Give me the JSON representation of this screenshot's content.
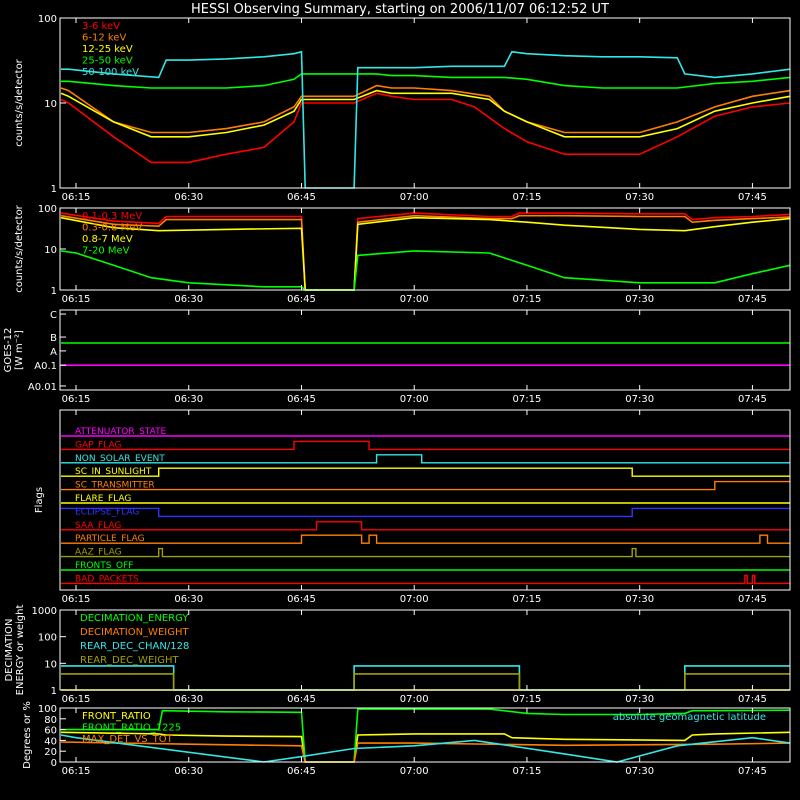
{
  "title": "HESSI Observing Summary, starting on 2006/11/07 06:12:52 UT",
  "time_ticks": [
    "06:15",
    "06:30",
    "06:45",
    "07:00",
    "07:15",
    "07:30",
    "07:45"
  ],
  "time_tick_minutes": [
    15,
    30,
    45,
    60,
    75,
    90,
    105
  ],
  "colors": {
    "axis": "#ffffff",
    "red": "#ff0000",
    "orange": "#ff8000",
    "yellow": "#ffff00",
    "green": "#00ff00",
    "cyan": "#33e6e6",
    "magenta": "#ff00ff",
    "blue": "#3333ff",
    "olive": "#a0a000",
    "salmon": "#ff6040"
  },
  "chart_data": [
    {
      "id": "lo",
      "type": "line",
      "ylabel": "counts/s/detector",
      "yscale": "log",
      "ylim": [
        1,
        100
      ],
      "ytick_labels": [
        "1",
        "10",
        "100"
      ],
      "legend": [
        "3-6 keV",
        "6-12 keV",
        "12-25 keV",
        "25-50 keV",
        "50-100 keV"
      ],
      "series": [
        {
          "name": "3-6 keV",
          "color": "red",
          "x": [
            13,
            14,
            20,
            25,
            30,
            35,
            40,
            44,
            45,
            52,
            55,
            57,
            60,
            65,
            68,
            72,
            75,
            80,
            85,
            90,
            95,
            100,
            105,
            110
          ],
          "y": [
            11,
            10,
            4,
            2,
            2,
            2.5,
            3,
            6,
            10,
            10,
            13,
            12,
            11,
            11,
            9,
            5,
            3.5,
            2.5,
            2.5,
            2.5,
            4,
            7,
            9,
            10
          ]
        },
        {
          "name": "6-12 keV",
          "color": "orange",
          "x": [
            13,
            14,
            20,
            25,
            30,
            35,
            40,
            44,
            45,
            52,
            55,
            57,
            60,
            65,
            70,
            72,
            75,
            80,
            85,
            90,
            95,
            100,
            105,
            110
          ],
          "y": [
            15,
            14,
            6,
            4.5,
            4.5,
            5,
            6,
            9,
            12,
            12,
            16,
            15,
            15,
            14,
            12,
            8,
            6,
            4.5,
            4.5,
            4.5,
            6,
            9,
            12,
            14
          ]
        },
        {
          "name": "12-25 keV",
          "color": "yellow",
          "x": [
            13,
            14,
            20,
            25,
            30,
            35,
            40,
            44,
            45,
            52,
            55,
            57,
            60,
            65,
            70,
            72,
            75,
            80,
            85,
            90,
            95,
            100,
            105,
            110
          ],
          "y": [
            13,
            12,
            6,
            4,
            4,
            4.5,
            5.5,
            8,
            11,
            11,
            14,
            13,
            13,
            13,
            11,
            8,
            6,
            4,
            4,
            4,
            5,
            8,
            10,
            12
          ]
        },
        {
          "name": "25-50 keV",
          "color": "green",
          "x": [
            13,
            14,
            20,
            25,
            30,
            35,
            40,
            44,
            45,
            52,
            55,
            57,
            60,
            65,
            72,
            75,
            80,
            85,
            90,
            95,
            100,
            105,
            110
          ],
          "y": [
            18,
            18,
            16,
            15,
            15,
            15,
            16,
            19,
            22,
            22,
            22,
            21,
            21,
            20,
            20,
            19,
            16,
            15,
            15,
            15,
            17,
            18,
            20
          ]
        },
        {
          "name": "50-100 keV",
          "color": "cyan",
          "x": [
            13,
            14,
            20,
            26,
            27,
            30,
            35,
            40,
            44,
            45,
            45.5,
            52,
            52.5,
            57,
            60,
            65,
            72,
            73,
            75,
            80,
            85,
            90,
            95,
            96,
            100,
            105,
            110
          ],
          "y": [
            25,
            25,
            22,
            20,
            32,
            32,
            33,
            35,
            38,
            40,
            1,
            1,
            26,
            26,
            26,
            27,
            27,
            40,
            38,
            36,
            35,
            35,
            34,
            22,
            20,
            22,
            25
          ]
        }
      ]
    },
    {
      "id": "hi",
      "type": "line",
      "ylabel": "counts/s/detector",
      "yscale": "log",
      "ylim": [
        1,
        100
      ],
      "ytick_labels": [
        "1",
        "10",
        "100"
      ],
      "legend": [
        "0.1-0.3 MeV",
        "0.3-0.8 MeV",
        "0.8-7 MeV",
        "7-20 MeV"
      ],
      "series": [
        {
          "name": "0.1-0.3 MeV",
          "color": "red",
          "x": [
            13,
            20,
            26,
            27,
            35,
            45,
            45.5,
            52,
            52.5,
            60,
            70,
            73,
            74,
            80,
            90,
            96,
            97,
            100,
            105,
            110
          ],
          "y": [
            75,
            48,
            42,
            62,
            62,
            62,
            1,
            1,
            55,
            75,
            62,
            62,
            75,
            75,
            72,
            72,
            52,
            58,
            62,
            70
          ]
        },
        {
          "name": "0.3-0.8 MeV",
          "color": "orange",
          "x": [
            13,
            20,
            26,
            27,
            35,
            45,
            45.5,
            52,
            52.5,
            60,
            70,
            73,
            74,
            80,
            90,
            96,
            97,
            100,
            105,
            110
          ],
          "y": [
            65,
            40,
            36,
            52,
            52,
            52,
            1,
            1,
            45,
            65,
            55,
            55,
            65,
            65,
            62,
            62,
            45,
            50,
            55,
            60
          ]
        },
        {
          "name": "0.8-7 MeV",
          "color": "yellow",
          "x": [
            13,
            20,
            26,
            35,
            45,
            45.5,
            52,
            52.5,
            60,
            70,
            75,
            80,
            90,
            96,
            100,
            105,
            110
          ],
          "y": [
            58,
            33,
            28,
            30,
            32,
            1,
            1,
            40,
            58,
            52,
            45,
            38,
            30,
            28,
            35,
            45,
            55
          ]
        },
        {
          "name": "7-20 MeV",
          "color": "green",
          "x": [
            13,
            15,
            20,
            25,
            30,
            40,
            45,
            45.5,
            52,
            52.5,
            60,
            70,
            75,
            80,
            90,
            100,
            105,
            110
          ],
          "y": [
            9,
            8,
            4,
            2,
            1.5,
            1.2,
            1.2,
            1,
            1,
            7,
            9,
            8,
            4,
            2,
            1.5,
            1.5,
            2.5,
            4
          ]
        }
      ]
    },
    {
      "id": "goes",
      "type": "line",
      "ylabel": "GOES-12 [W m^-2]",
      "yscale": "log",
      "ytick_labels": [
        "C",
        "B",
        "A",
        "A0.1",
        "A0.01"
      ],
      "series": [
        {
          "name": "",
          "color": "green",
          "x": [
            13,
            110
          ],
          "y": [
            1.1,
            1.1
          ]
        },
        {
          "name": "",
          "color": "magenta",
          "x": [
            13,
            110
          ],
          "y": [
            0.12,
            0.12
          ]
        }
      ]
    },
    {
      "id": "flags",
      "type": "line",
      "ylabel": "Flags",
      "series": [
        {
          "name": "ATTENUATOR_STATE",
          "color": "magenta",
          "x": [
            13,
            110
          ],
          "y": [
            0,
            0
          ]
        },
        {
          "name": "GAP_FLAG",
          "color": "red",
          "x": [
            13,
            44,
            44,
            54,
            54,
            110
          ],
          "y": [
            0,
            0,
            1,
            1,
            0,
            0
          ]
        },
        {
          "name": "NON_SOLAR_EVENT",
          "color": "cyan",
          "x": [
            13,
            55,
            55,
            61,
            61,
            110
          ],
          "y": [
            0,
            0,
            1,
            1,
            0,
            0
          ]
        },
        {
          "name": "SC_IN_SUNLIGHT",
          "color": "yellow",
          "x": [
            13,
            26,
            26,
            89,
            89,
            110
          ],
          "y": [
            0,
            0,
            1,
            1,
            0,
            0
          ]
        },
        {
          "name": "SC_TRANSMITTER",
          "color": "orange",
          "x": [
            13,
            100,
            100,
            110
          ],
          "y": [
            0,
            0,
            1,
            1
          ]
        },
        {
          "name": "FLARE_FLAG",
          "color": "yellow",
          "x": [
            13,
            110
          ],
          "y": [
            0,
            0
          ]
        },
        {
          "name": "ECLIPSE_FLAG",
          "color": "blue",
          "x": [
            13,
            26,
            26,
            89,
            89,
            110
          ],
          "y": [
            1,
            1,
            0,
            0,
            1,
            1
          ]
        },
        {
          "name": "SAA_FLAG",
          "color": "red",
          "x": [
            13,
            47,
            47,
            53,
            53,
            110
          ],
          "y": [
            0,
            0,
            1,
            1,
            0,
            0
          ]
        },
        {
          "name": "PARTICLE_FLAG",
          "color": "orange",
          "x": [
            13,
            45,
            45,
            53,
            53,
            54,
            54,
            55,
            55,
            106,
            106,
            107,
            107,
            110
          ],
          "y": [
            0,
            0,
            1,
            1,
            0,
            0,
            1,
            1,
            0,
            0,
            1,
            1,
            0,
            0
          ]
        },
        {
          "name": "AAZ_FLAG",
          "color": "olive",
          "x": [
            13,
            26,
            26,
            26.5,
            26.5,
            89,
            89,
            89.5,
            89.5,
            110
          ],
          "y": [
            0,
            0,
            1,
            1,
            0,
            0,
            1,
            1,
            0,
            0
          ]
        },
        {
          "name": "FRONTS_OFF",
          "color": "green",
          "x": [
            13,
            110
          ],
          "y": [
            0,
            0
          ]
        },
        {
          "name": "BAD_PACKETS",
          "color": "red",
          "x": [
            13,
            104,
            104,
            104.3,
            104.3,
            105,
            105,
            105.3,
            105.3,
            110
          ],
          "y": [
            0,
            0,
            1,
            1,
            0,
            0,
            1,
            1,
            0,
            0
          ]
        }
      ]
    },
    {
      "id": "dec",
      "type": "line",
      "ylabel": "DECIMATION ENERGY or weight",
      "yscale": "log",
      "ylim": [
        1,
        1000
      ],
      "ytick_labels": [
        "1",
        "10",
        "100",
        "1000"
      ],
      "legend": [
        "DECIMATION_ENERGY",
        "DECIMATION_WEIGHT",
        "REAR_DEC_CHAN/128",
        "REAR_DEC_WEIGHT"
      ],
      "series": [
        {
          "name": "DECIMATION_ENERGY",
          "color": "green",
          "x": [
            13,
            110
          ],
          "y": [
            1,
            1
          ]
        },
        {
          "name": "DECIMATION_WEIGHT",
          "color": "orange",
          "x": [
            13,
            110
          ],
          "y": [
            1,
            1
          ]
        },
        {
          "name": "REAR_DEC_CHAN/128",
          "color": "cyan",
          "x": [
            13,
            28,
            28,
            52,
            52,
            74,
            74,
            96,
            96,
            110
          ],
          "y": [
            8,
            8,
            1,
            1,
            8,
            8,
            1,
            1,
            8,
            8
          ]
        },
        {
          "name": "REAR_DEC_WEIGHT",
          "color": "olive",
          "x": [
            13,
            28,
            28,
            52,
            52,
            74,
            74,
            96,
            96,
            110
          ],
          "y": [
            4,
            4,
            1,
            1,
            4,
            4,
            1,
            1,
            4,
            4
          ]
        }
      ]
    },
    {
      "id": "ratio",
      "type": "line",
      "ylabel": "Degrees or %",
      "ylim": [
        0,
        100
      ],
      "ytick_labels": [
        "0",
        "20",
        "40",
        "60",
        "80",
        "100"
      ],
      "legend": [
        "FRONT_RATIO",
        "FRONT_RATIO_1225",
        "MAX_DET_VS_TOT"
      ],
      "note": "absolute geomagnetic latitude",
      "series": [
        {
          "name": "FRONT_RATIO",
          "color": "yellow",
          "x": [
            13,
            26,
            27,
            35,
            45,
            45.5,
            52,
            52.5,
            60,
            72,
            73,
            80,
            96,
            97,
            100,
            110
          ],
          "y": [
            55,
            52,
            50,
            48,
            47,
            0,
            0,
            50,
            52,
            52,
            45,
            42,
            40,
            50,
            52,
            55
          ]
        },
        {
          "name": "FRONT_RATIO_1225",
          "color": "green",
          "x": [
            13,
            26,
            26.5,
            35,
            45,
            45.5,
            52,
            52.5,
            60,
            70,
            75,
            80,
            90,
            96,
            97,
            100,
            110
          ],
          "y": [
            60,
            60,
            95,
            93,
            92,
            0,
            0,
            98,
            98,
            98,
            90,
            88,
            88,
            90,
            95,
            95,
            96
          ]
        },
        {
          "name": "MAX_DET_VS_TOT",
          "color": "orange",
          "x": [
            13,
            30,
            45,
            45.5,
            52,
            52.5,
            60,
            80,
            100,
            110
          ],
          "y": [
            37,
            33,
            30,
            0,
            0,
            35,
            35,
            31,
            33,
            35
          ]
        },
        {
          "name": "absolute geomagnetic latitude",
          "color": "cyan",
          "x": [
            13,
            15,
            40,
            45,
            52,
            60,
            68,
            80,
            87,
            95,
            105,
            110
          ],
          "y": [
            50,
            45,
            0,
            10,
            25,
            30,
            40,
            15,
            0,
            30,
            45,
            35
          ]
        }
      ]
    }
  ]
}
